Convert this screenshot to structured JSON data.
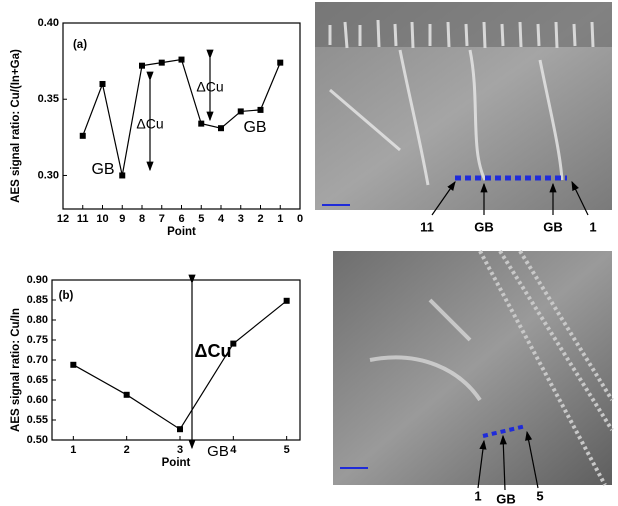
{
  "chart_data": [
    {
      "type": "line",
      "title": "(a)",
      "x_label": "Point",
      "y_label": "AES signal ratio: Cu/(In+Ga)",
      "x": [
        11,
        10,
        9,
        8,
        7,
        6,
        5,
        4,
        3,
        2,
        1
      ],
      "values": [
        0.326,
        0.36,
        0.3,
        0.372,
        0.374,
        0.376,
        0.334,
        0.331,
        0.342,
        0.343,
        0.374
      ],
      "color": "#000000",
      "xlim": [
        12,
        0
      ],
      "xticks": [
        12,
        11,
        10,
        9,
        8,
        7,
        6,
        5,
        4,
        3,
        2,
        1,
        0
      ],
      "ylim": [
        0.278,
        0.4
      ],
      "yticks": [
        {
          "value": 0.4,
          "label": "0.40"
        },
        0.35,
        {
          "value": 0.3,
          "label": "0.30"
        }
      ],
      "annotations": [
        "ΔCu",
        "ΔCu",
        "GB",
        "GB"
      ]
    },
    {
      "type": "line",
      "title": "(b)",
      "x_label": "Point",
      "y_label": "AES signal ratio: Cu/In",
      "x": [
        1,
        2,
        3,
        4,
        5
      ],
      "values": [
        0.688,
        0.613,
        0.527,
        0.741,
        0.848
      ],
      "color": "#000000",
      "xlim": [
        0.6,
        5.25
      ],
      "xticks": [
        1,
        2,
        3,
        4,
        5
      ],
      "ylim": [
        0.5,
        0.9
      ],
      "yticks": [
        {
          "value": 0.5,
          "label": "0.50"
        },
        0.55,
        {
          "value": 0.6,
          "label": "0.60"
        },
        0.65,
        {
          "value": 0.7,
          "label": "0.70"
        },
        0.75,
        {
          "value": 0.8,
          "label": "0.80"
        },
        0.85,
        {
          "value": 0.9,
          "label": "0.90"
        }
      ],
      "annotations": [
        "ΔCu",
        "GB"
      ]
    }
  ],
  "images": [
    {
      "labels": [
        "11",
        "GB",
        "GB",
        "1"
      ]
    },
    {
      "labels": [
        "1",
        "GB",
        "5"
      ]
    }
  ]
}
